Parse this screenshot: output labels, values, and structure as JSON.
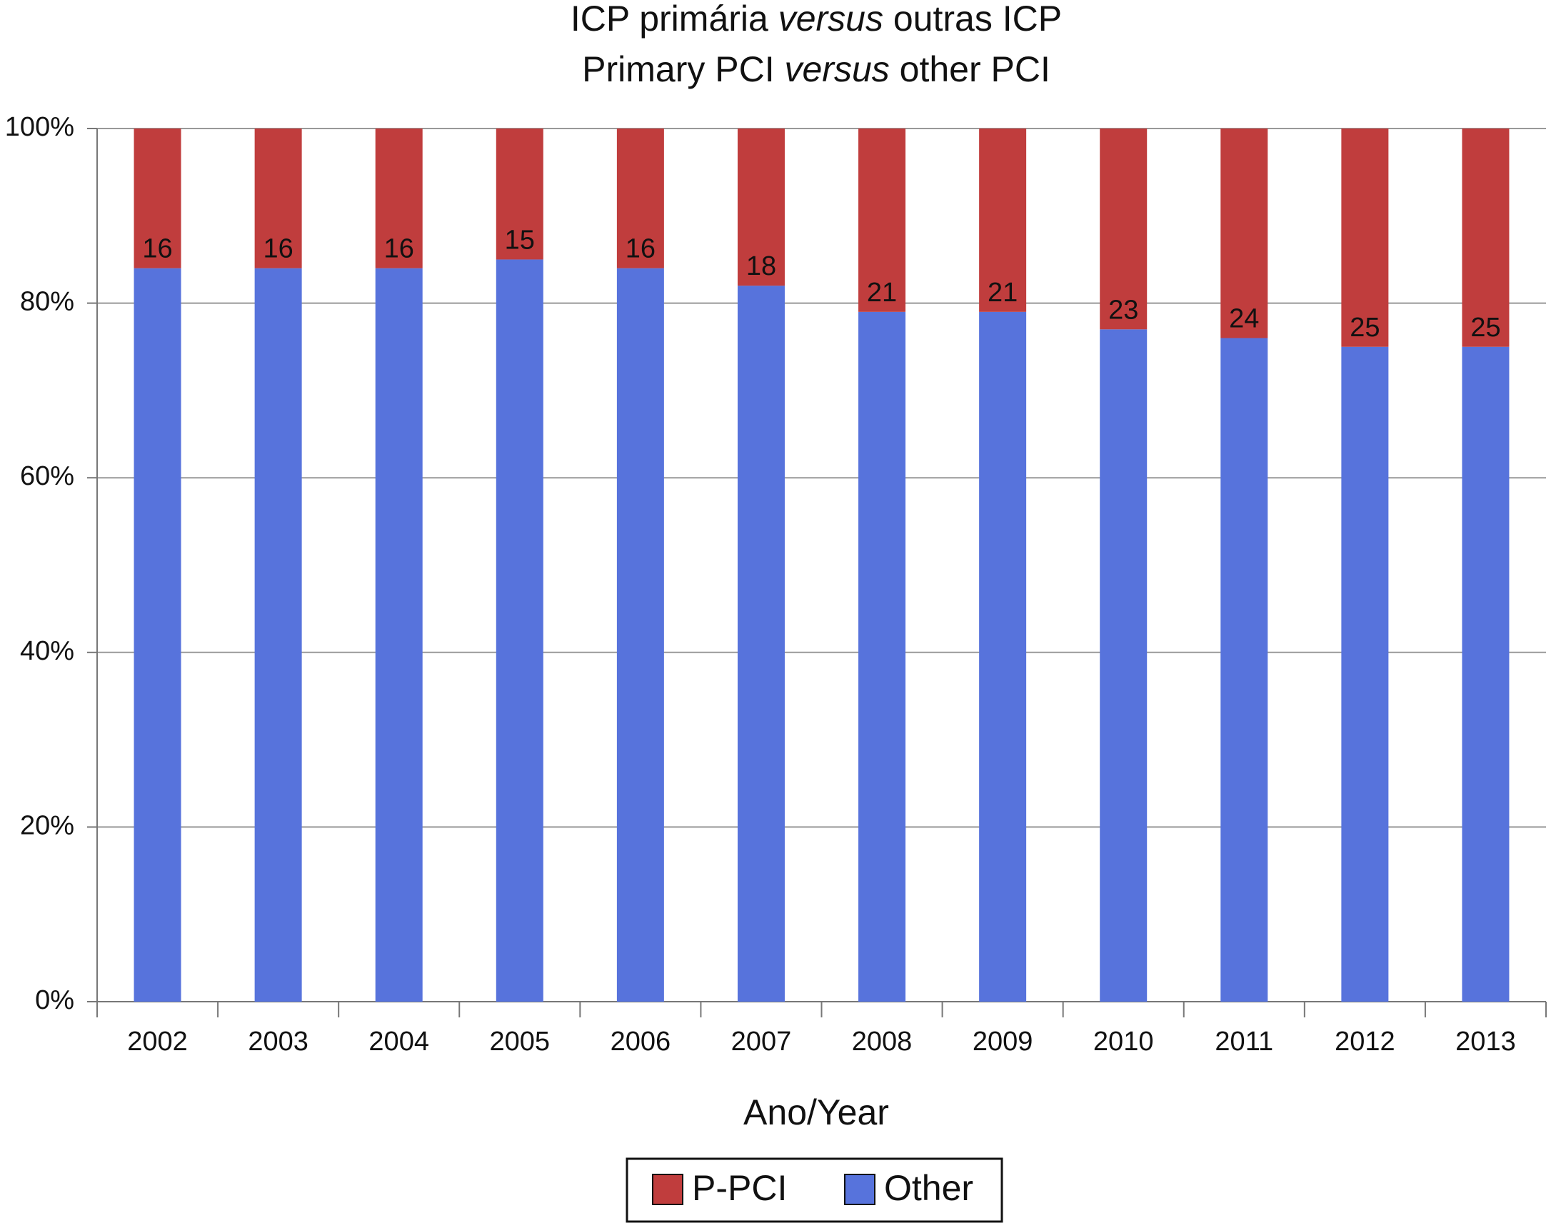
{
  "chart_data": {
    "type": "stacked_bar",
    "title": [
      [
        "ICP primária ",
        "versus",
        " outras ICP"
      ],
      [
        "Primary PCI ",
        "versus",
        " other PCI"
      ]
    ],
    "x_label": "Ano/Year",
    "categories": [
      "2002",
      "2003",
      "2004",
      "2005",
      "2006",
      "2007",
      "2008",
      "2009",
      "2010",
      "2011",
      "2012",
      "2013"
    ],
    "series": [
      {
        "name": "Other",
        "color": "#5773dc",
        "values": [
          84,
          84,
          84,
          85,
          84,
          82,
          79,
          79,
          77,
          76,
          75,
          75
        ]
      },
      {
        "name": "P-PCI",
        "color": "#c03d3d",
        "values": [
          16,
          16,
          16,
          15,
          16,
          18,
          21,
          21,
          23,
          24,
          25,
          25
        ]
      }
    ],
    "ylim": [
      0,
      100
    ],
    "yticks": [
      {
        "value": 0,
        "label": "0%"
      },
      {
        "value": 20,
        "label": "20%"
      },
      {
        "value": 40,
        "label": "40%"
      },
      {
        "value": 60,
        "label": "60%"
      },
      {
        "value": 80,
        "label": "80%"
      },
      {
        "value": 100,
        "label": "100%"
      }
    ],
    "grid": true,
    "legend": "bottom"
  }
}
